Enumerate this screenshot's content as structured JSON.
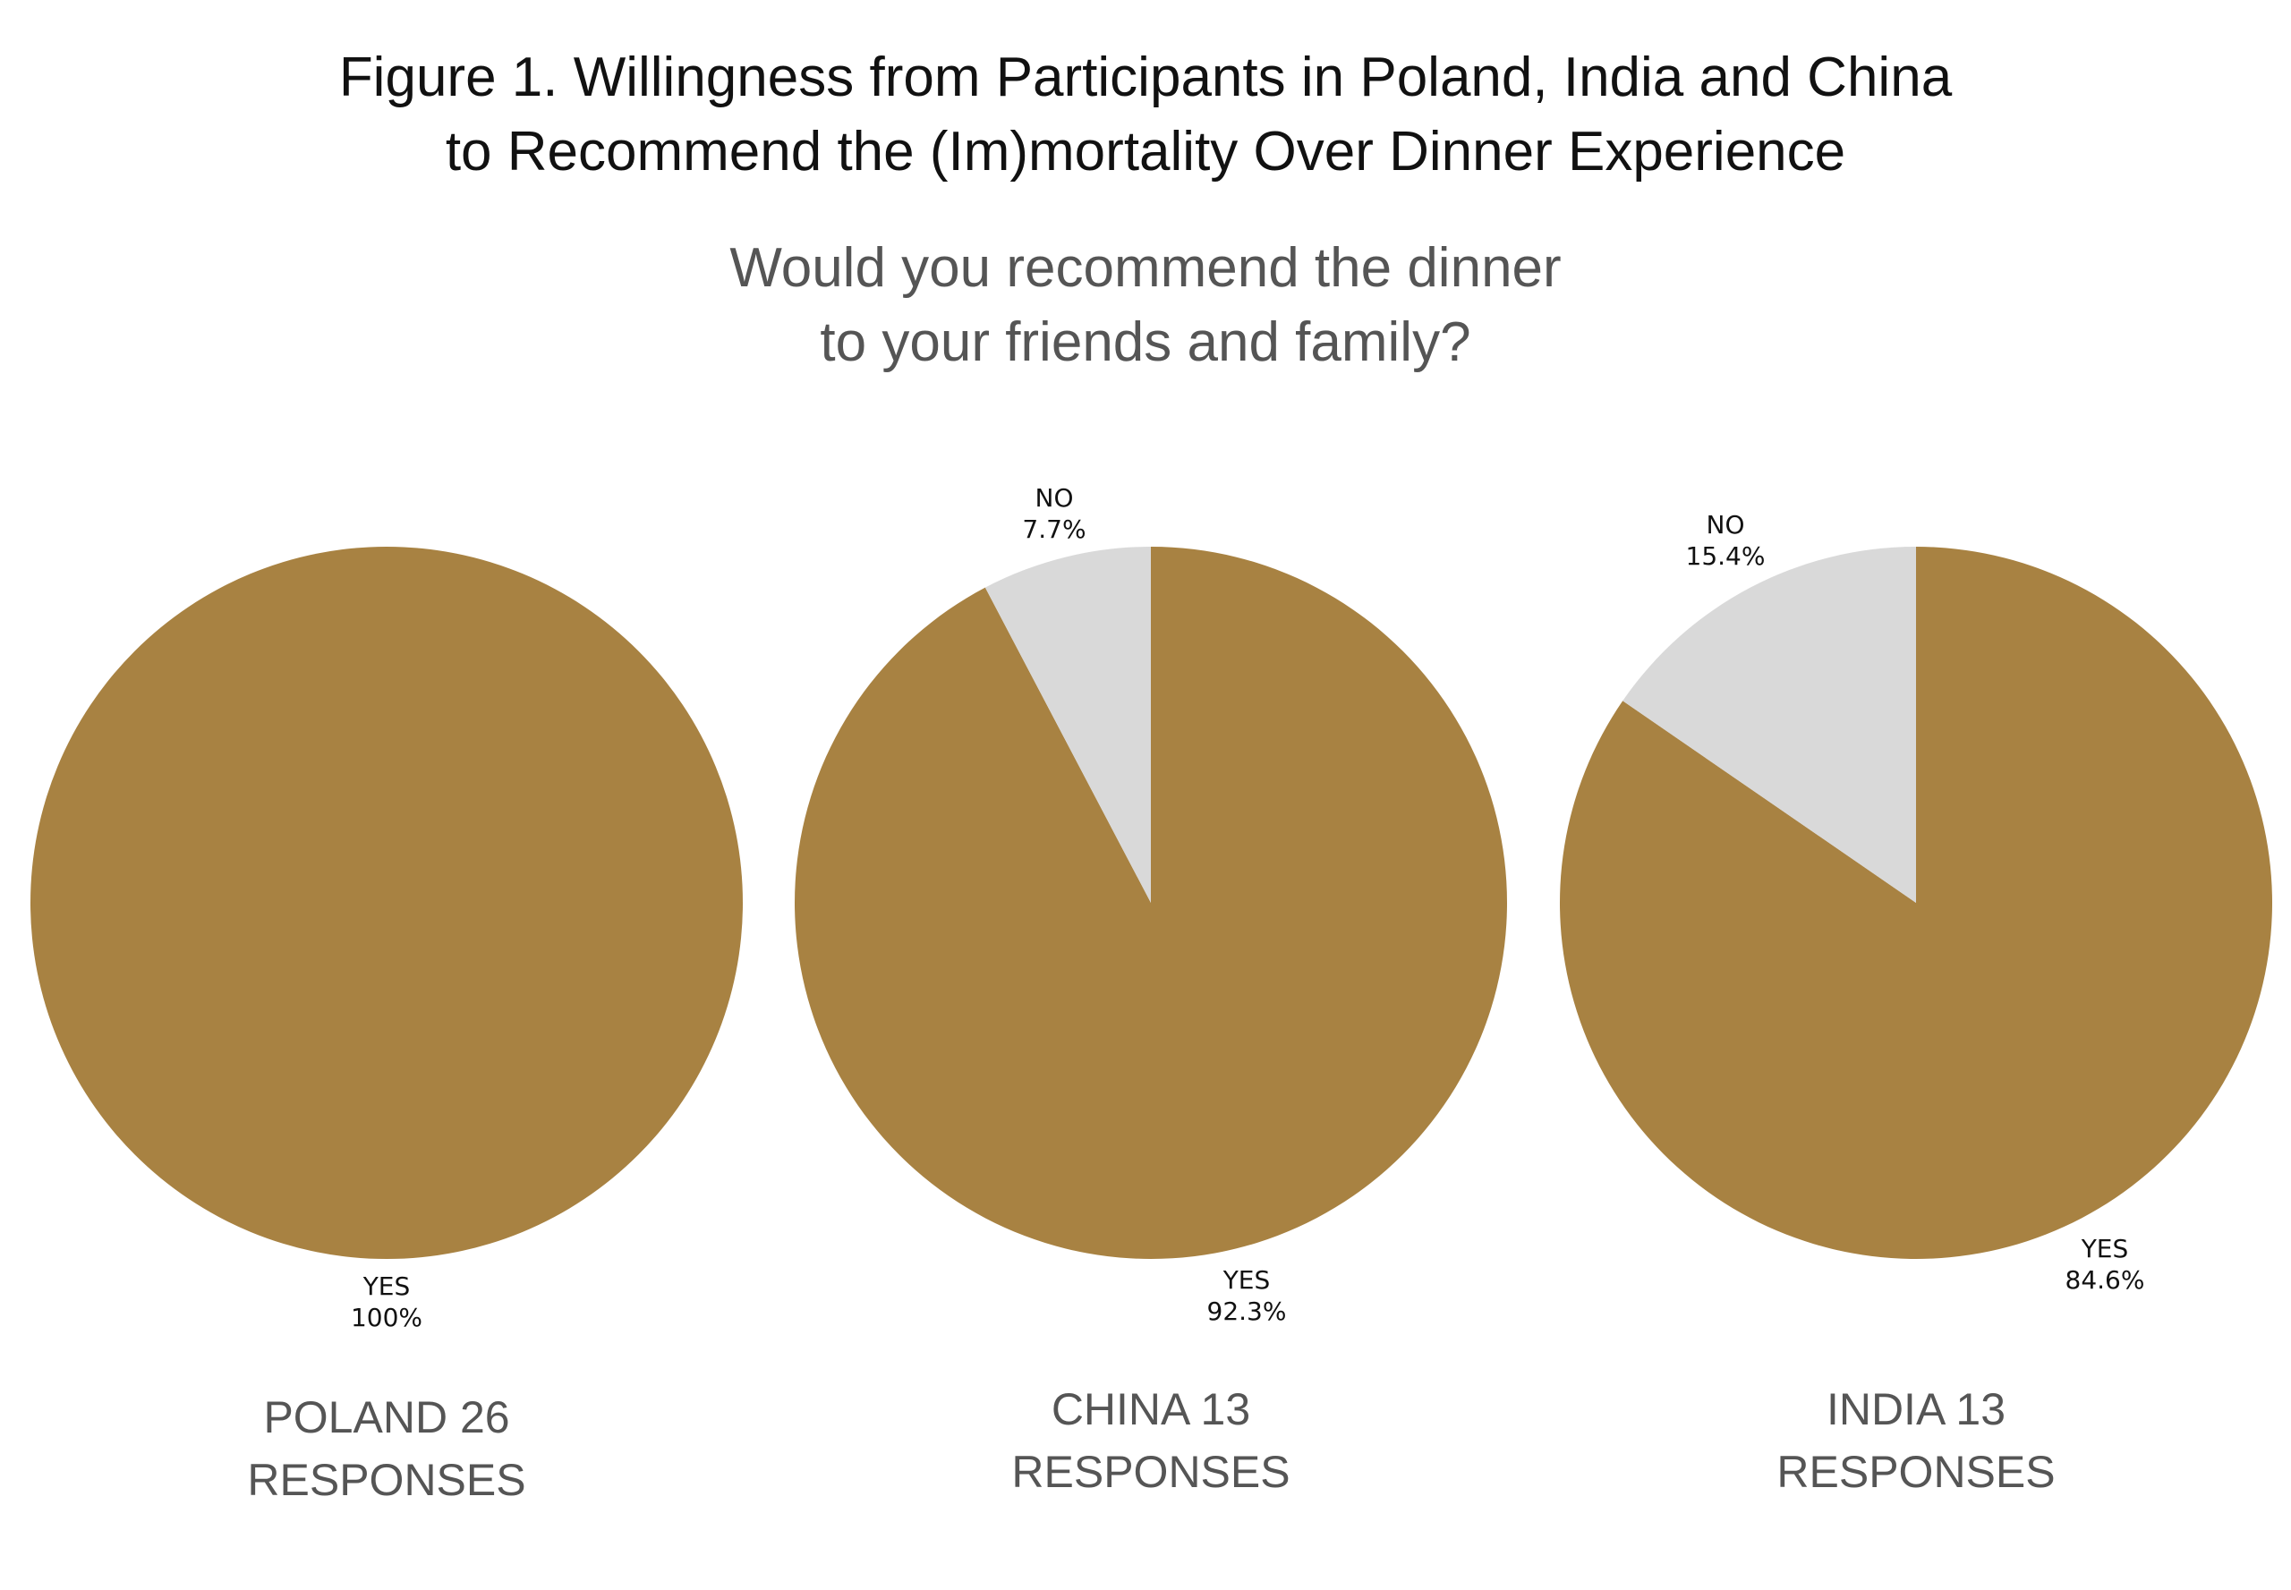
{
  "title_lines": [
    "Figure 1. Willingness from Participants in Poland, India and China",
    "to Recommend the (Im)mortality Over Dinner Experience"
  ],
  "subtitle_lines": [
    "Would you recommend the dinner",
    "to your friends and family?"
  ],
  "colors": {
    "yes": "#a88242",
    "no": "#d9d9d9"
  },
  "chart_data": [
    {
      "type": "pie",
      "caption_lines": [
        "POLAND 26",
        "RESPONSES"
      ],
      "slices": [
        {
          "label": "YES",
          "value": 100,
          "value_label": "100%",
          "color": "#a88242"
        }
      ]
    },
    {
      "type": "pie",
      "caption_lines": [
        "CHINA 13",
        "RESPONSES"
      ],
      "slices": [
        {
          "label": "YES",
          "value": 92.3,
          "value_label": "92.3%",
          "color": "#a88242"
        },
        {
          "label": "NO",
          "value": 7.7,
          "value_label": "7.7%",
          "color": "#d9d9d9"
        }
      ]
    },
    {
      "type": "pie",
      "caption_lines": [
        "INDIA 13",
        "RESPONSES"
      ],
      "slices": [
        {
          "label": "YES",
          "value": 84.6,
          "value_label": "84.6%",
          "color": "#a88242"
        },
        {
          "label": "NO",
          "value": 15.4,
          "value_label": "15.4%",
          "color": "#d9d9d9"
        }
      ]
    }
  ]
}
